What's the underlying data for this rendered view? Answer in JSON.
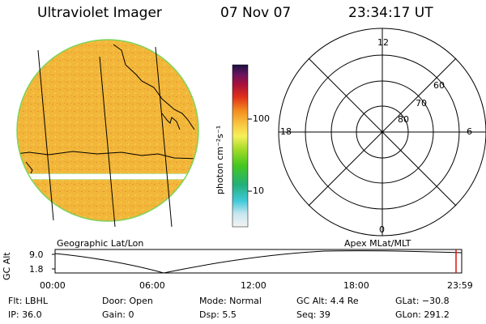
{
  "header": {
    "instrument": "Ultraviolet Imager",
    "date": "07 Nov 07",
    "time": "23:34:17 UT"
  },
  "colorbar": {
    "unit_label": "photon cm⁻²s⁻¹",
    "ticks": [
      "100",
      "10"
    ]
  },
  "polar_plot": {
    "mlt_labels": [
      "12",
      "18",
      "6",
      "0"
    ],
    "lat_labels": [
      "60",
      "70",
      "80"
    ]
  },
  "projection_labels": {
    "left": "Geographic Lat/Lon",
    "right": "Apex MLat/MLT"
  },
  "altitude_plot": {
    "ylabel": "GC Alt",
    "yticks": [
      "9.0",
      "1.8"
    ],
    "xticks": [
      "00:00",
      "06:00",
      "12:00",
      "18:00",
      "23:59"
    ],
    "current_time_marker": "23:34"
  },
  "info": {
    "flt": "Flt: LBHL",
    "ip": "IP: 36.0",
    "door": "Door: Open",
    "gain": "Gain:  0",
    "mode": "Mode: Normal",
    "dsp": "Dsp:    5.5",
    "gc_alt": "GC Alt: 4.4 Re",
    "seq": "Seq: 39",
    "glat": "GLat: −30.8",
    "glon": "GLon: 291.2"
  },
  "colors": {
    "disk_base": "#f2b73a",
    "disk_edge": "#7ed35a",
    "marker": "#e01010"
  }
}
